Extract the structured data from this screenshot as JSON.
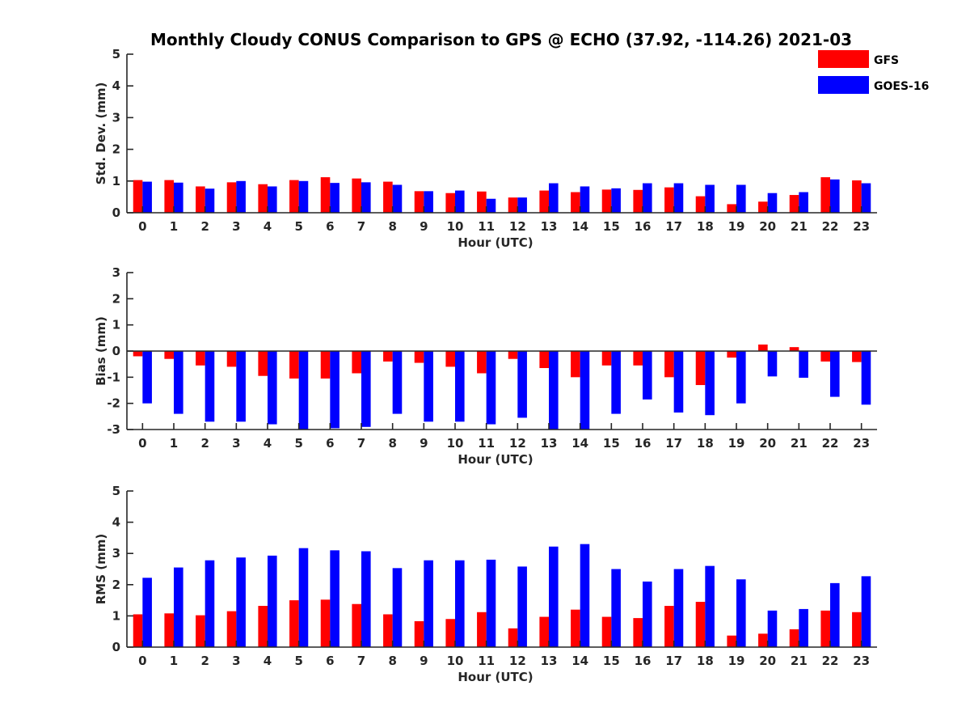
{
  "title": "Monthly Cloudy CONUS Comparison to GPS @ ECHO (37.92, -114.26) 2021-03",
  "colors": {
    "GFS": "#ff0000",
    "GOES-16": "#0000ff"
  },
  "legend": {
    "placement": "top-right",
    "entries": [
      "GFS",
      "GOES-16"
    ]
  },
  "chart_data": [
    {
      "type": "bar",
      "xlabel": "Hour (UTC)",
      "ylabel": "Std. Dev. (mm)",
      "ylim": [
        0,
        5
      ],
      "yticks": [
        "0",
        "1",
        "2",
        "3",
        "4",
        "5"
      ],
      "categories": [
        "0",
        "1",
        "2",
        "3",
        "4",
        "5",
        "6",
        "7",
        "8",
        "9",
        "10",
        "11",
        "12",
        "13",
        "14",
        "15",
        "16",
        "17",
        "18",
        "19",
        "20",
        "21",
        "22",
        "23"
      ],
      "series": [
        {
          "name": "GFS",
          "values": [
            1.03,
            1.03,
            0.83,
            0.96,
            0.9,
            1.03,
            1.12,
            1.08,
            0.98,
            0.68,
            0.62,
            0.67,
            0.48,
            0.7,
            0.65,
            0.73,
            0.72,
            0.8,
            0.52,
            0.27,
            0.35,
            0.56,
            1.12,
            1.02
          ]
        },
        {
          "name": "GOES-16",
          "values": [
            0.98,
            0.95,
            0.76,
            1.0,
            0.83,
            1.0,
            0.94,
            0.96,
            0.88,
            0.68,
            0.7,
            0.44,
            0.48,
            0.93,
            0.83,
            0.77,
            0.93,
            0.93,
            0.88,
            0.88,
            0.62,
            0.65,
            1.05,
            0.93
          ]
        }
      ]
    },
    {
      "type": "bar",
      "xlabel": "Hour (UTC)",
      "ylabel": "Bias (mm)",
      "ylim": [
        -3,
        3
      ],
      "yticks": [
        "-3",
        "-2",
        "-1",
        "0",
        "1",
        "2",
        "3"
      ],
      "categories": [
        "0",
        "1",
        "2",
        "3",
        "4",
        "5",
        "6",
        "7",
        "8",
        "9",
        "10",
        "11",
        "12",
        "13",
        "14",
        "15",
        "16",
        "17",
        "18",
        "19",
        "20",
        "21",
        "22",
        "23"
      ],
      "series": [
        {
          "name": "GFS",
          "values": [
            -0.2,
            -0.3,
            -0.55,
            -0.6,
            -0.95,
            -1.05,
            -1.05,
            -0.85,
            -0.4,
            -0.45,
            -0.6,
            -0.85,
            -0.3,
            -0.65,
            -1.0,
            -0.55,
            -0.55,
            -1.0,
            -1.3,
            -0.25,
            0.25,
            0.15,
            -0.4,
            -0.42
          ]
        },
        {
          "name": "GOES-16",
          "values": [
            -2.0,
            -2.4,
            -2.7,
            -2.7,
            -2.8,
            -3.0,
            -2.95,
            -2.9,
            -2.4,
            -2.7,
            -2.7,
            -2.8,
            -2.55,
            -3.0,
            -3.0,
            -2.4,
            -1.85,
            -2.35,
            -2.45,
            -2.0,
            -0.97,
            -1.02,
            -1.75,
            -2.05
          ]
        }
      ]
    },
    {
      "type": "bar",
      "xlabel": "Hour (UTC)",
      "ylabel": "RMS (mm)",
      "ylim": [
        0,
        5
      ],
      "yticks": [
        "0",
        "1",
        "2",
        "3",
        "4",
        "5"
      ],
      "categories": [
        "0",
        "1",
        "2",
        "3",
        "4",
        "5",
        "6",
        "7",
        "8",
        "9",
        "10",
        "11",
        "12",
        "13",
        "14",
        "15",
        "16",
        "17",
        "18",
        "19",
        "20",
        "21",
        "22",
        "23"
      ],
      "series": [
        {
          "name": "GFS",
          "values": [
            1.05,
            1.08,
            1.02,
            1.15,
            1.32,
            1.5,
            1.52,
            1.38,
            1.05,
            0.83,
            0.9,
            1.12,
            0.6,
            0.97,
            1.2,
            0.97,
            0.93,
            1.32,
            1.45,
            0.37,
            0.43,
            0.57,
            1.17,
            1.12
          ]
        },
        {
          "name": "GOES-16",
          "values": [
            2.22,
            2.55,
            2.78,
            2.87,
            2.93,
            3.17,
            3.1,
            3.07,
            2.53,
            2.78,
            2.78,
            2.8,
            2.58,
            3.22,
            3.3,
            2.5,
            2.1,
            2.5,
            2.6,
            2.17,
            1.17,
            1.22,
            2.05,
            2.27
          ]
        }
      ]
    }
  ]
}
